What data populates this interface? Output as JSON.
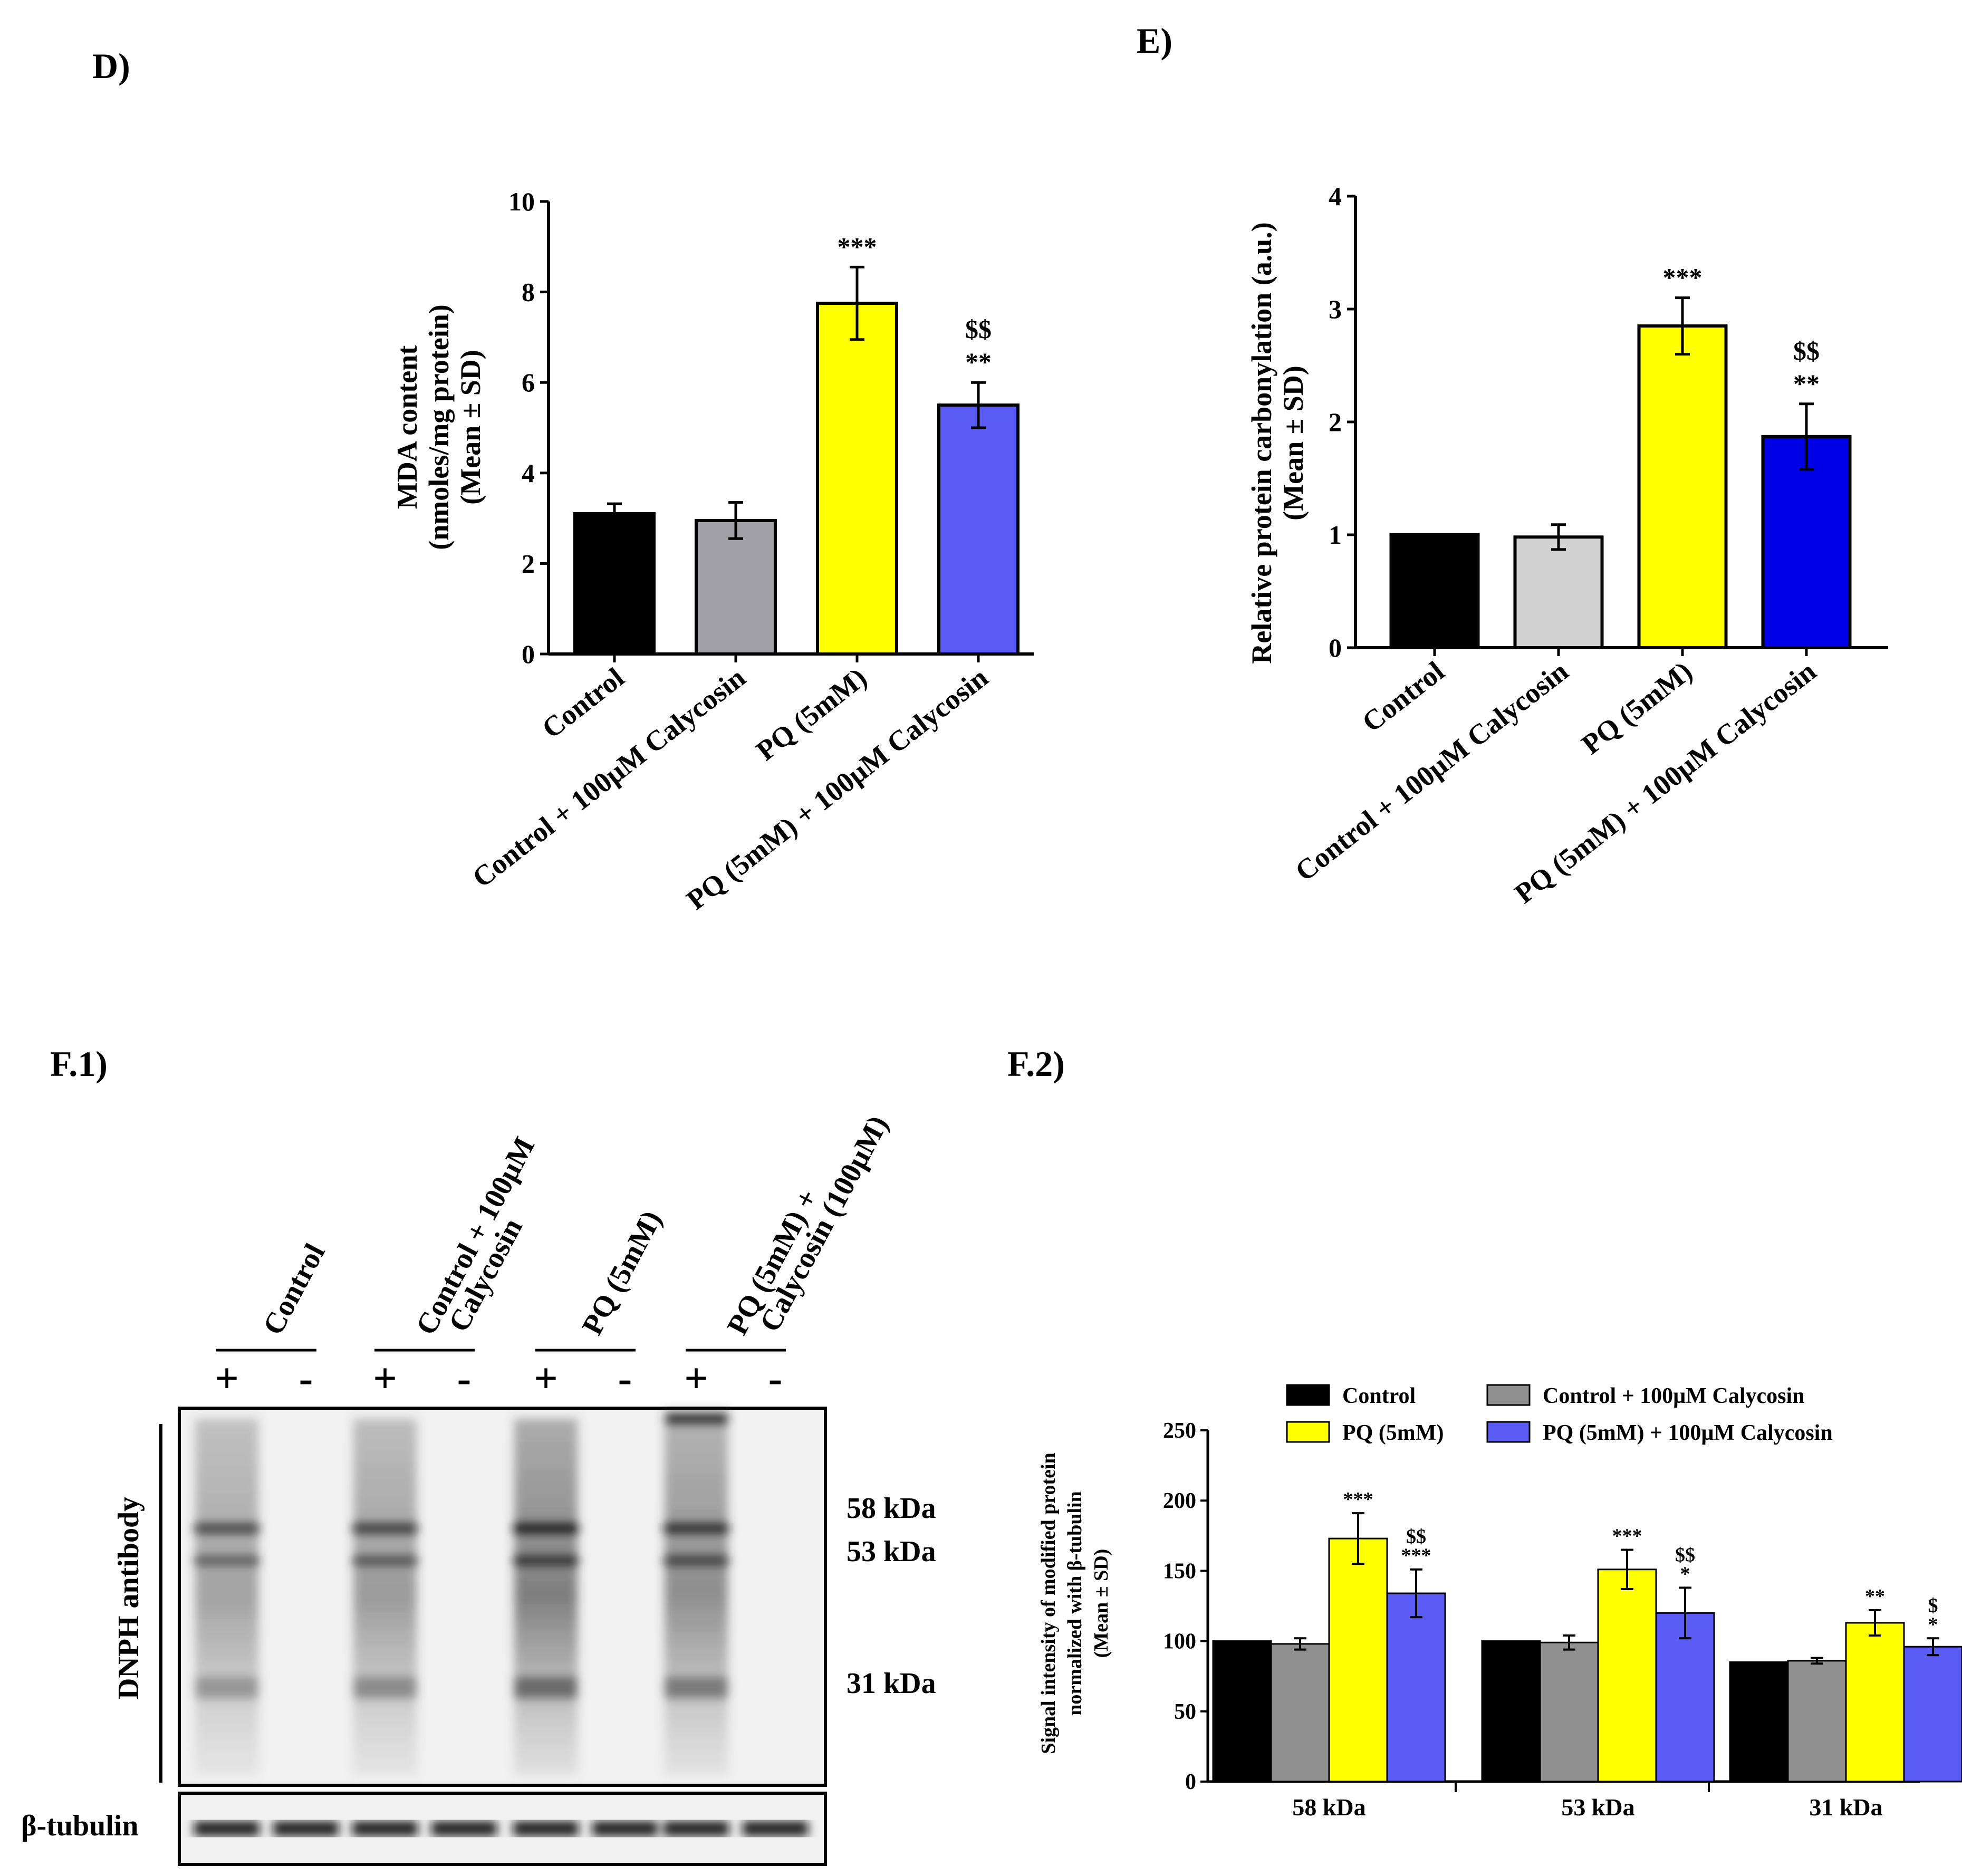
{
  "panels": {
    "d": "D)",
    "e": "E)",
    "f1": "F.1)",
    "f2": "F.2)"
  },
  "colors": {
    "d": [
      "#000000",
      "#a0a0a6",
      "#ffff00",
      "#5a5af5"
    ],
    "e": [
      "#000000",
      "#d2d2d2",
      "#ffff00",
      "#0000e6"
    ]
  },
  "chart_data": [
    {
      "id": "D",
      "type": "bar",
      "ylabel_lines": [
        "MDA content",
        "(nmoles/mg protein)",
        "(Mean ± SD)"
      ],
      "ylim": [
        0,
        10
      ],
      "yticks": [
        0,
        2,
        4,
        6,
        8,
        10
      ],
      "categories": [
        "Control",
        "Control + 100µM Calycosin",
        "PQ (5mM)",
        "PQ (5mM) + 100µM Calycosin"
      ],
      "values": [
        3.1,
        2.95,
        7.75,
        5.5
      ],
      "errors": [
        0.22,
        0.4,
        0.8,
        0.5
      ],
      "annotations": [
        [],
        [],
        [
          "***"
        ],
        [
          "$$",
          "**"
        ]
      ]
    },
    {
      "id": "E",
      "type": "bar",
      "ylabel_lines": [
        "Relative protein carbonylation (a.u.)",
        "(Mean ± SD)"
      ],
      "ylim": [
        0,
        4
      ],
      "yticks": [
        0,
        1,
        2,
        3,
        4
      ],
      "categories": [
        "Control",
        "Control + 100µM Calycosin",
        "PQ (5mM)",
        "PQ (5mM) + 100µM Calycosin"
      ],
      "values": [
        1.0,
        0.98,
        2.85,
        1.87
      ],
      "errors": [
        0.0,
        0.11,
        0.25,
        0.29
      ],
      "annotations": [
        [],
        [],
        [
          "***"
        ],
        [
          "$$",
          "**"
        ]
      ]
    },
    {
      "id": "F.2",
      "type": "bar",
      "ylabel_lines": [
        "Signal intensity of modified protein",
        "normalized with β-tubulin",
        "(Mean ± SD)"
      ],
      "ylim": [
        0,
        250
      ],
      "yticks": [
        0,
        50,
        100,
        150,
        200,
        250
      ],
      "categories": [
        "58 kDa",
        "53 kDa",
        "31 kDa"
      ],
      "legend": [
        "Control",
        "Control + 100µM Calycosin",
        "PQ (5mM)",
        "PQ (5mM) + 100µM Calycosin"
      ],
      "series": [
        {
          "name": "Control",
          "color": "#000000",
          "values": [
            100,
            100,
            85
          ],
          "errors": [
            0,
            0,
            0
          ],
          "annotations": [
            [],
            [],
            []
          ]
        },
        {
          "name": "Control + 100µM Calycosin",
          "color": "#909090",
          "values": [
            98,
            99,
            86
          ],
          "errors": [
            4,
            5,
            2
          ],
          "annotations": [
            [],
            [],
            []
          ]
        },
        {
          "name": "PQ (5mM)",
          "color": "#ffff00",
          "values": [
            173,
            151,
            113
          ],
          "errors": [
            18,
            14,
            9
          ],
          "annotations": [
            [
              "***"
            ],
            [
              "***"
            ],
            [
              "**"
            ]
          ]
        },
        {
          "name": "PQ (5mM) + 100µM Calycosin",
          "color": "#5a5af5",
          "values": [
            134,
            120,
            96
          ],
          "errors": [
            17,
            18,
            6
          ],
          "annotations": [
            [
              "$$",
              "***"
            ],
            [
              "$$",
              "*"
            ],
            [
              "$",
              "*"
            ]
          ]
        }
      ]
    }
  ],
  "blot": {
    "lanes": [
      {
        "label_lines": [
          "Control"
        ]
      },
      {
        "label_lines": [
          "Control  + 100µM",
          "Calycosin"
        ]
      },
      {
        "label_lines": [
          "PQ (5mM)"
        ]
      },
      {
        "label_lines": [
          "PQ (5mM) +",
          "Calycosin (100µM)"
        ]
      }
    ],
    "signs": [
      "+",
      "-"
    ],
    "antibody": "DNPH antibody",
    "markers": [
      "58 kDa",
      "53 kDa",
      "31 kDa"
    ],
    "loading": "β-tubulin"
  }
}
